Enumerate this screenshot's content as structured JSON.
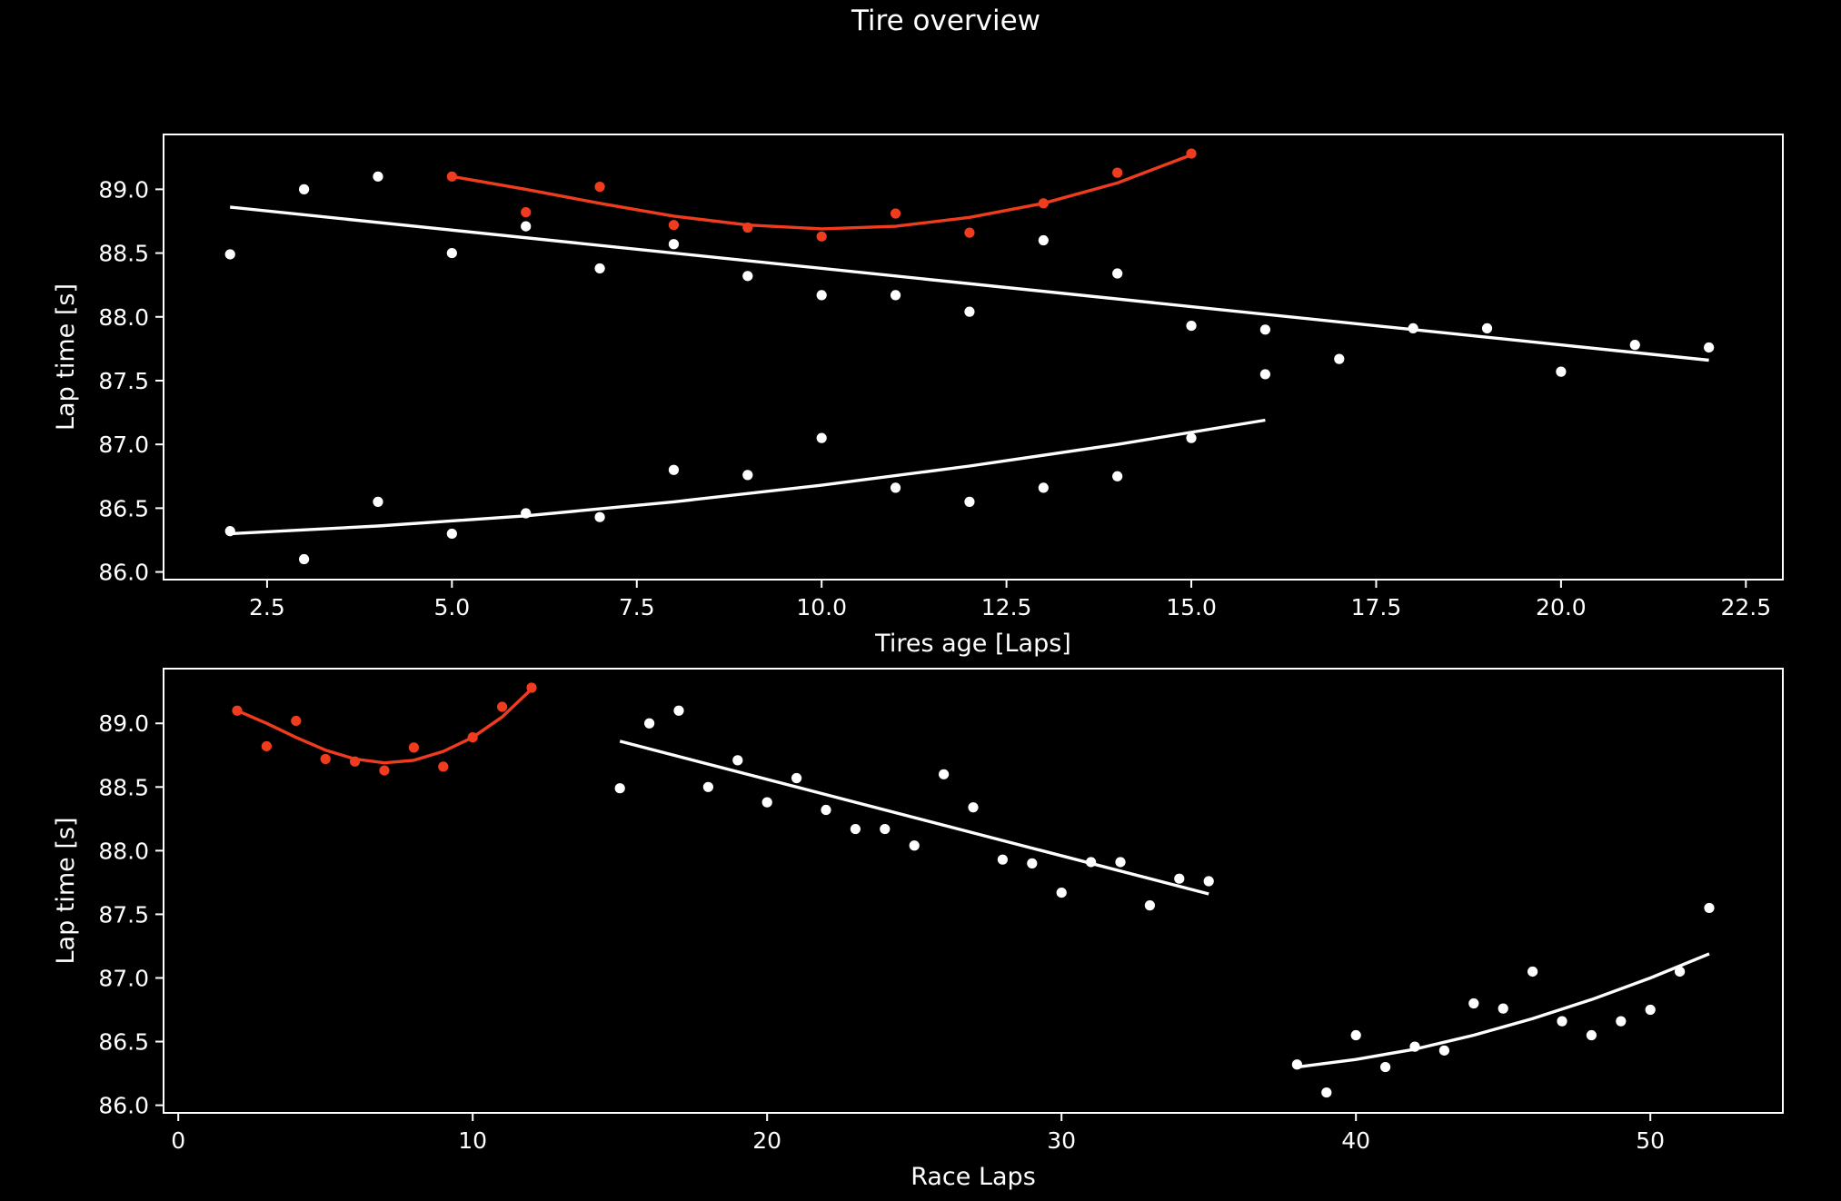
{
  "figure": {
    "title": "Tire overview",
    "background": "#000000",
    "foreground": "#ffffff"
  },
  "chart_data": [
    {
      "type": "scatter",
      "title": "",
      "xlabel": "Tires age [Laps]",
      "ylabel": "Lap time [s]",
      "xlim": [
        1.1,
        23.0
      ],
      "ylim": [
        85.94,
        89.43
      ],
      "xticks": [
        2.5,
        5.0,
        7.5,
        10.0,
        12.5,
        15.0,
        17.5,
        20.0,
        22.5
      ],
      "yticks": [
        86.0,
        86.5,
        87.0,
        87.5,
        88.0,
        88.5,
        89.0
      ],
      "xtick_labels": [
        "2.5",
        "5.0",
        "7.5",
        "10.0",
        "12.5",
        "15.0",
        "17.5",
        "20.0",
        "22.5"
      ],
      "ytick_labels": [
        "86.0",
        "86.5",
        "87.0",
        "87.5",
        "88.0",
        "88.5",
        "89.0"
      ],
      "grid": false,
      "series": [
        {
          "color": "#f03c1e",
          "x": [
            5,
            6,
            7,
            8,
            9,
            10,
            11,
            12,
            13,
            14,
            15
          ],
          "y": [
            89.1,
            88.82,
            89.02,
            88.72,
            88.7,
            88.63,
            88.81,
            88.66,
            88.89,
            89.13,
            89.28
          ],
          "trend": [
            [
              5,
              89.1
            ],
            [
              6,
              89.0
            ],
            [
              7,
              88.89
            ],
            [
              8,
              88.79
            ],
            [
              9,
              88.72
            ],
            [
              10,
              88.69
            ],
            [
              11,
              88.71
            ],
            [
              12,
              88.78
            ],
            [
              13,
              88.89
            ],
            [
              14,
              89.05
            ],
            [
              15,
              89.27
            ]
          ]
        },
        {
          "color": "#ffffff",
          "x": [
            2,
            3,
            4,
            5,
            6,
            7,
            8,
            9,
            10,
            11,
            12,
            13,
            14,
            15,
            16,
            16,
            17,
            18,
            19,
            20,
            21,
            22
          ],
          "y": [
            88.49,
            89.0,
            89.1,
            88.5,
            88.71,
            88.38,
            88.57,
            88.32,
            88.17,
            88.17,
            88.04,
            88.6,
            88.34,
            87.93,
            87.9,
            87.55,
            87.67,
            87.91,
            87.91,
            87.57,
            87.78,
            87.76
          ],
          "trend": [
            [
              2,
              88.86
            ],
            [
              22,
              87.66
            ]
          ]
        },
        {
          "color": "#ffffff",
          "x": [
            2,
            3,
            4,
            5,
            6,
            7,
            8,
            9,
            10,
            11,
            12,
            13,
            14,
            15
          ],
          "y": [
            86.32,
            86.1,
            86.55,
            86.3,
            86.46,
            86.43,
            86.8,
            86.76,
            87.05,
            86.66,
            86.55,
            86.66,
            86.75,
            87.05
          ],
          "trend": [
            [
              2,
              86.3
            ],
            [
              4,
              86.36
            ],
            [
              6,
              86.44
            ],
            [
              8,
              86.55
            ],
            [
              10,
              86.68
            ],
            [
              12,
              86.83
            ],
            [
              14,
              87.0
            ],
            [
              16,
              87.19
            ]
          ]
        }
      ]
    },
    {
      "type": "scatter",
      "title": "",
      "xlabel": "Race Laps",
      "ylabel": "Lap time [s]",
      "xlim": [
        -0.5,
        54.5
      ],
      "ylim": [
        85.94,
        89.43
      ],
      "xticks": [
        0,
        10,
        20,
        30,
        40,
        50
      ],
      "yticks": [
        86.0,
        86.5,
        87.0,
        87.5,
        88.0,
        88.5,
        89.0
      ],
      "xtick_labels": [
        "0",
        "10",
        "20",
        "30",
        "40",
        "50"
      ],
      "ytick_labels": [
        "86.0",
        "86.5",
        "87.0",
        "87.5",
        "88.0",
        "88.5",
        "89.0"
      ],
      "grid": false,
      "series": [
        {
          "color": "#f03c1e",
          "x": [
            2,
            3,
            4,
            5,
            6,
            7,
            8,
            9,
            10,
            11,
            12
          ],
          "y": [
            89.1,
            88.82,
            89.02,
            88.72,
            88.7,
            88.63,
            88.81,
            88.66,
            88.89,
            89.13,
            89.28
          ],
          "trend": [
            [
              2,
              89.1
            ],
            [
              3,
              89.0
            ],
            [
              4,
              88.89
            ],
            [
              5,
              88.79
            ],
            [
              6,
              88.72
            ],
            [
              7,
              88.69
            ],
            [
              8,
              88.71
            ],
            [
              9,
              88.78
            ],
            [
              10,
              88.89
            ],
            [
              11,
              89.05
            ],
            [
              12,
              89.27
            ]
          ]
        },
        {
          "color": "#ffffff",
          "x": [
            15,
            16,
            17,
            18,
            19,
            20,
            21,
            22,
            23,
            24,
            25,
            26,
            27,
            28,
            29,
            30,
            31,
            32,
            33,
            34,
            35
          ],
          "y": [
            88.49,
            89.0,
            89.1,
            88.5,
            88.71,
            88.38,
            88.57,
            88.32,
            88.17,
            88.17,
            88.04,
            88.6,
            88.34,
            87.93,
            87.9,
            87.67,
            87.91,
            87.91,
            87.57,
            87.78,
            87.76
          ],
          "trend": [
            [
              15,
              88.86
            ],
            [
              35,
              87.66
            ]
          ]
        },
        {
          "color": "#ffffff",
          "x": [
            38,
            39,
            40,
            41,
            42,
            43,
            44,
            45,
            46,
            47,
            48,
            49,
            50,
            51,
            52
          ],
          "y": [
            86.32,
            86.1,
            86.55,
            86.3,
            86.46,
            86.43,
            86.8,
            86.76,
            87.05,
            86.66,
            86.55,
            86.66,
            86.75,
            87.05,
            87.55
          ],
          "trend": [
            [
              38,
              86.3
            ],
            [
              40,
              86.36
            ],
            [
              42,
              86.44
            ],
            [
              44,
              86.55
            ],
            [
              46,
              86.68
            ],
            [
              48,
              86.83
            ],
            [
              50,
              87.0
            ],
            [
              52,
              87.19
            ]
          ]
        }
      ]
    }
  ]
}
